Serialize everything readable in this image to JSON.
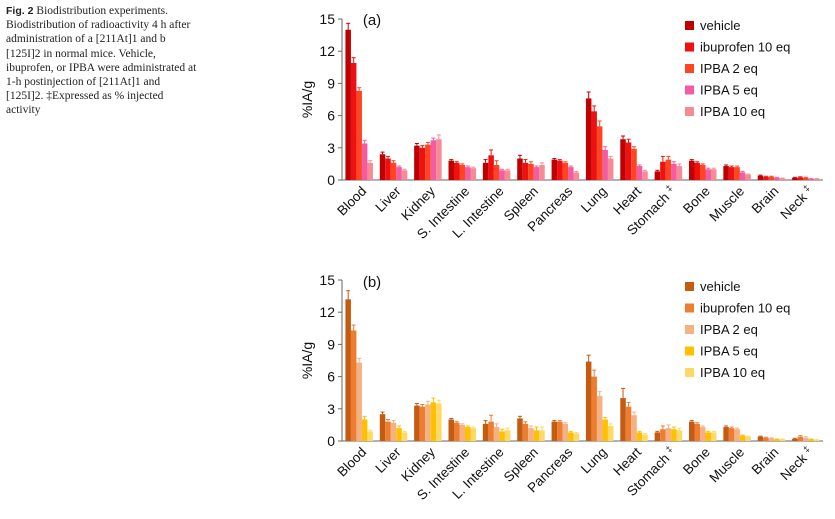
{
  "caption": {
    "figure_label": "Fig. 2",
    "text": "Biodistribution experiments. Biodistribution of radioactivity 4 h after administration of a [211At]1 and b [125I]2 in normal mice. Vehicle, ibuprofen, or IPBA were administrated at 1-h postinjection of [211At]1 and [125I]2. ‡Expressed as % injected activity"
  },
  "chart_data": [
    {
      "type": "bar",
      "panel_label": "(a)",
      "ylabel": "%IA/g",
      "ylim": [
        0,
        15
      ],
      "yticks": [
        0,
        3,
        6,
        9,
        12,
        15
      ],
      "legend_position": "top-right",
      "categories": [
        "Blood",
        "Liver",
        "Kidney",
        "S. Intestine",
        "L. Intestine",
        "Spleen",
        "Pancreas",
        "Lung",
        "Heart",
        "Stomach ‡",
        "Bone",
        "Muscle",
        "Brain",
        "Neck ‡"
      ],
      "series": [
        {
          "name": "vehicle",
          "color": "#c00000",
          "values": [
            14.0,
            2.4,
            3.2,
            1.8,
            1.6,
            2.0,
            1.9,
            7.6,
            3.8,
            0.8,
            1.8,
            1.3,
            0.4,
            0.2
          ],
          "errors": [
            0.6,
            0.2,
            0.2,
            0.1,
            0.3,
            0.3,
            0.1,
            0.6,
            0.3,
            0.1,
            0.1,
            0.1,
            0.05,
            0.05
          ]
        },
        {
          "name": "ibuprofen 10 eq",
          "color": "#ee1111",
          "values": [
            10.9,
            2.0,
            3.0,
            1.6,
            2.3,
            1.6,
            1.8,
            6.4,
            3.5,
            1.7,
            1.6,
            1.2,
            0.3,
            0.25
          ],
          "errors": [
            0.5,
            0.2,
            0.2,
            0.1,
            0.5,
            0.3,
            0.1,
            0.5,
            0.3,
            0.5,
            0.1,
            0.1,
            0.05,
            0.05
          ]
        },
        {
          "name": "IPBA 2 eq",
          "color": "#ff4422",
          "values": [
            8.3,
            1.6,
            3.3,
            1.4,
            1.4,
            1.5,
            1.6,
            5.0,
            2.9,
            1.9,
            1.4,
            1.2,
            0.3,
            0.2
          ],
          "errors": [
            0.3,
            0.2,
            0.2,
            0.1,
            0.4,
            0.2,
            0.1,
            0.5,
            0.2,
            0.3,
            0.1,
            0.1,
            0.05,
            0.05
          ]
        },
        {
          "name": "IPBA 5 eq",
          "color": "#f25ca2",
          "values": [
            3.4,
            1.2,
            3.7,
            1.2,
            0.9,
            1.2,
            1.2,
            2.8,
            1.3,
            1.5,
            1.0,
            0.7,
            0.2,
            0.1
          ],
          "errors": [
            0.3,
            0.1,
            0.2,
            0.1,
            0.1,
            0.1,
            0.1,
            0.3,
            0.1,
            0.2,
            0.1,
            0.1,
            0.05,
            0.03
          ]
        },
        {
          "name": "IPBA 10 eq",
          "color": "#f78b95",
          "values": [
            1.6,
            0.9,
            3.8,
            1.1,
            0.9,
            1.4,
            0.7,
            2.0,
            0.8,
            1.3,
            1.0,
            0.5,
            0.15,
            0.1
          ],
          "errors": [
            0.2,
            0.1,
            0.4,
            0.1,
            0.1,
            0.2,
            0.1,
            0.2,
            0.1,
            0.2,
            0.1,
            0.05,
            0.03,
            0.03
          ]
        }
      ]
    },
    {
      "type": "bar",
      "panel_label": "(b)",
      "ylabel": "%IA/g",
      "ylim": [
        0,
        15
      ],
      "yticks": [
        0,
        3,
        6,
        9,
        12,
        15
      ],
      "legend_position": "top-right",
      "categories": [
        "Blood",
        "Liver",
        "Kidney",
        "S. Intestine",
        "L. Intestine",
        "Spleen",
        "Pancreas",
        "Lung",
        "Heart",
        "Stomach ‡",
        "Bone",
        "Muscle",
        "Brain",
        "Neck ‡"
      ],
      "series": [
        {
          "name": "vehicle",
          "color": "#c55a11",
          "values": [
            13.2,
            2.5,
            3.3,
            2.0,
            1.6,
            2.1,
            1.8,
            7.4,
            4.0,
            0.8,
            1.8,
            1.3,
            0.4,
            0.2
          ],
          "errors": [
            0.8,
            0.2,
            0.2,
            0.1,
            0.3,
            0.2,
            0.1,
            0.6,
            0.9,
            0.1,
            0.1,
            0.1,
            0.05,
            0.05
          ]
        },
        {
          "name": "ibuprofen 10 eq",
          "color": "#ed7d31",
          "values": [
            10.3,
            1.8,
            3.2,
            1.7,
            1.8,
            1.6,
            1.8,
            6.0,
            3.2,
            1.1,
            1.6,
            1.2,
            0.3,
            0.4
          ],
          "errors": [
            0.5,
            0.2,
            0.2,
            0.1,
            0.6,
            0.2,
            0.1,
            0.6,
            0.4,
            0.3,
            0.1,
            0.1,
            0.05,
            0.1
          ]
        },
        {
          "name": "IPBA 2 eq",
          "color": "#f4b183",
          "values": [
            7.3,
            1.7,
            3.4,
            1.5,
            1.3,
            1.2,
            1.6,
            4.2,
            2.4,
            1.2,
            1.3,
            1.1,
            0.25,
            0.3
          ],
          "errors": [
            0.4,
            0.2,
            0.3,
            0.1,
            0.3,
            0.2,
            0.1,
            0.4,
            0.3,
            0.3,
            0.1,
            0.1,
            0.05,
            0.1
          ]
        },
        {
          "name": "IPBA 5 eq",
          "color": "#ffc000",
          "values": [
            2.0,
            1.2,
            3.6,
            1.3,
            0.9,
            1.0,
            0.8,
            2.0,
            0.8,
            1.1,
            0.8,
            0.5,
            0.15,
            0.15
          ],
          "errors": [
            0.3,
            0.2,
            0.4,
            0.1,
            0.2,
            0.3,
            0.1,
            0.2,
            0.1,
            0.2,
            0.1,
            0.05,
            0.03,
            0.03
          ]
        },
        {
          "name": "IPBA 10 eq",
          "color": "#ffd966",
          "values": [
            0.9,
            0.8,
            3.5,
            1.2,
            1.0,
            1.0,
            0.7,
            1.4,
            0.6,
            1.0,
            0.8,
            0.4,
            0.15,
            0.1
          ],
          "errors": [
            0.1,
            0.1,
            0.3,
            0.1,
            0.2,
            0.3,
            0.1,
            0.2,
            0.1,
            0.2,
            0.1,
            0.05,
            0.03,
            0.03
          ]
        }
      ]
    }
  ]
}
